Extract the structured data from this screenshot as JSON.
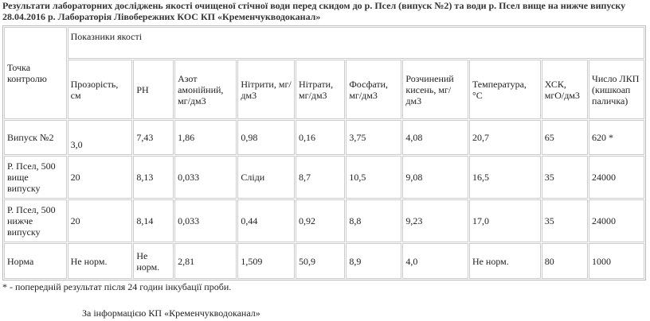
{
  "title": "Результати лабораторних досліджень якості очищеної стічної води перед скидом до р. Псел (випуск №2) та води р. Псел вище на нижче випуску 28.04.2016 р. Лабораторія Лівобережних КОС КП «Кременчукводоканал»",
  "table": {
    "row_header": "Точка контролю",
    "group_header": "Показники якості",
    "columns": [
      "Прозорість, см",
      "PH",
      "Азот амонійний, мг/дм3",
      "Нітрити, мг/дм3",
      "Нітрати, мг/дм3",
      "Фосфати, мг/дм3",
      "Розчинений кисень, мг/дм3",
      "Температура, °С",
      "ХСК, мгО/дм3",
      "Число ЛКП (кишкоап паличка)"
    ],
    "rows": [
      [
        "Випуск №2",
        "3,0",
        "7,43",
        "1,86",
        "0,98",
        "0,16",
        "3,75",
        "4,08",
        "20,7",
        "65",
        "620 *"
      ],
      [
        "Р. Псел, 500 вище випуску",
        "20",
        "8,13",
        "0,033",
        "Сліди",
        "8,7",
        "10,5",
        "9,08",
        "16,5",
        "35",
        "24000"
      ],
      [
        "Р. Псел, 500 нижче випуску",
        "20",
        "8,14",
        "0,033",
        "0,44",
        "0,92",
        "8,8",
        "9,23",
        "17,0",
        "35",
        "24000"
      ],
      [
        "Норма",
        "Не норм.",
        "Не норм.",
        "2,81",
        "1,509",
        "50,9",
        "8,9",
        "4,0",
        "Не норм.",
        "80",
        "1000"
      ]
    ]
  },
  "footnote": "* - попередній результат після 24 годин інкубації проби.",
  "source": "За інформацією КП «Кременчукводоканал»"
}
